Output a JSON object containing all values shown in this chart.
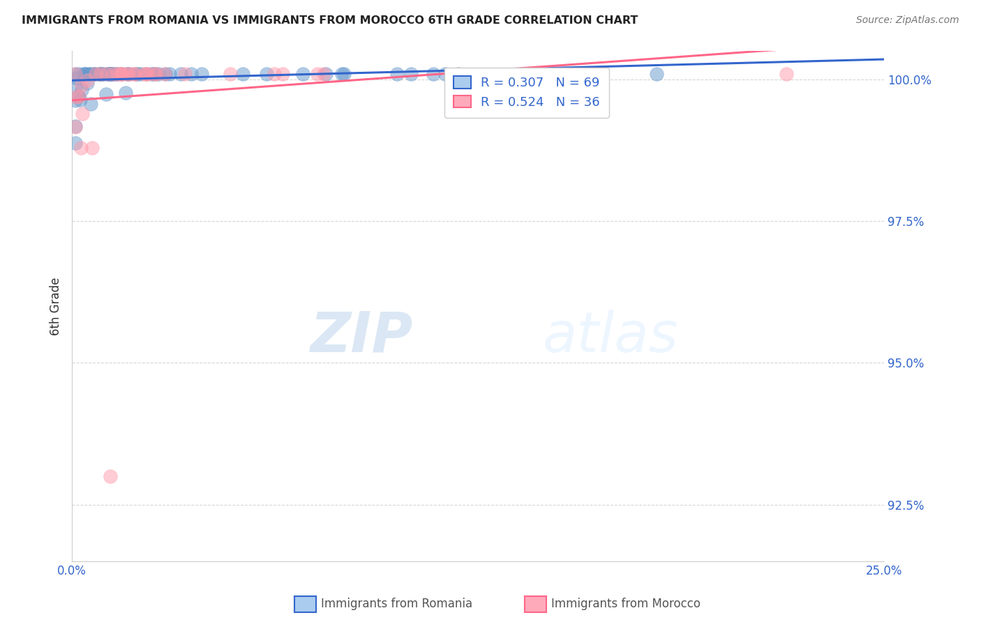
{
  "title": "IMMIGRANTS FROM ROMANIA VS IMMIGRANTS FROM MOROCCO 6TH GRADE CORRELATION CHART",
  "source": "Source: ZipAtlas.com",
  "ylabel": "6th Grade",
  "yaxis_labels": [
    "100.0%",
    "97.5%",
    "95.0%",
    "92.5%"
  ],
  "yaxis_values": [
    1.0,
    0.975,
    0.95,
    0.925
  ],
  "xmin": 0.0,
  "xmax": 0.25,
  "ymin": 0.915,
  "ymax": 1.005,
  "romania_R": 0.307,
  "romania_N": 69,
  "morocco_R": 0.524,
  "morocco_N": 36,
  "romania_color": "#6699CC",
  "morocco_color": "#FF99AA",
  "romania_line_color": "#3366CC",
  "morocco_line_color": "#FF6688",
  "watermark_zip": "ZIP",
  "watermark_atlas": "atlas",
  "legend_box_color_romania": "#AACCEE",
  "legend_box_color_morocco": "#FFAABB"
}
